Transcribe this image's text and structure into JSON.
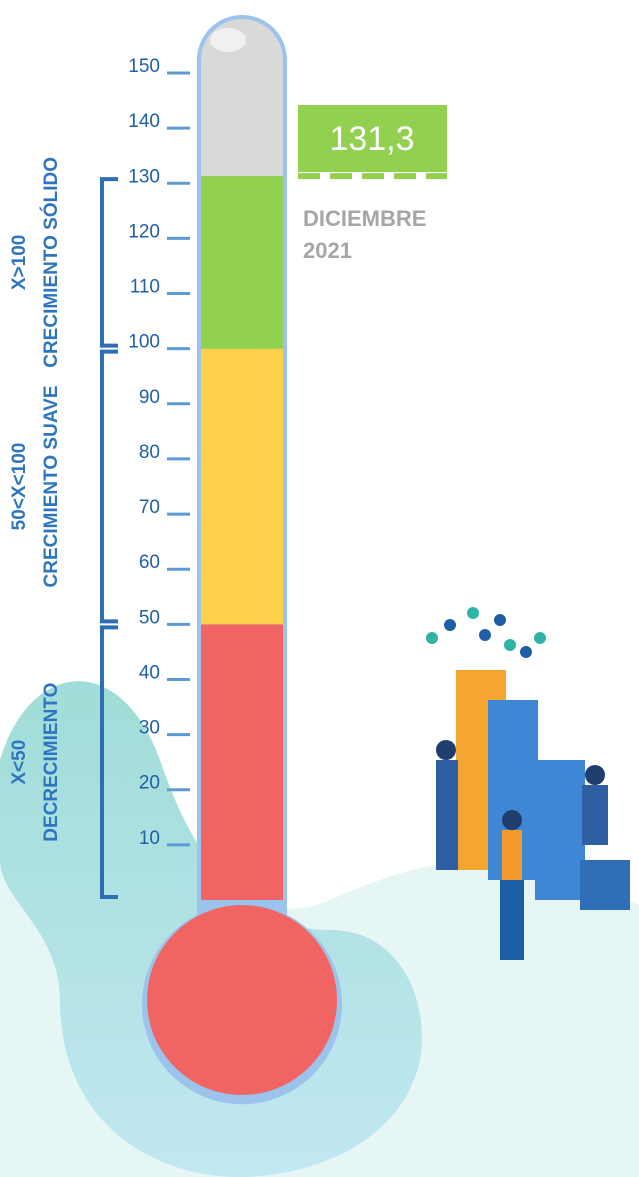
{
  "chart_data": {
    "type": "thermometer",
    "value": 131.3,
    "value_label": "131,3",
    "value_color": "#92d050",
    "period": [
      "DICIEMBRE",
      "2021"
    ],
    "ylim": [
      0,
      150
    ],
    "yticks": [
      10,
      20,
      30,
      40,
      50,
      60,
      70,
      80,
      90,
      100,
      110,
      120,
      130,
      140,
      150
    ],
    "empty_color": "#d9d9d9",
    "bands": [
      {
        "from": 0,
        "to": 50,
        "color": "#f06464",
        "label": [
          "X<50",
          "DECRECIMIENTO"
        ]
      },
      {
        "from": 50,
        "to": 100,
        "color": "#fdd04a",
        "label": [
          "50<X<100",
          "CRECIMIENTO SUAVE"
        ]
      },
      {
        "from": 100,
        "color": "#92d050",
        "label": [
          "X>100",
          "CRECIMIENTO SÓLIDO"
        ]
      }
    ]
  }
}
